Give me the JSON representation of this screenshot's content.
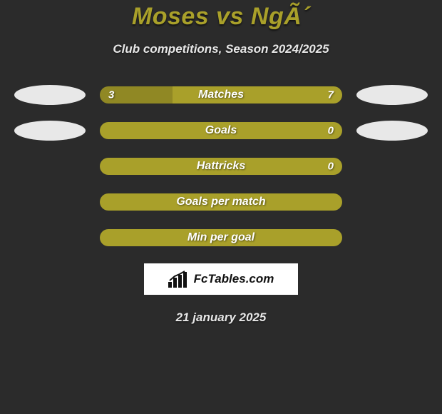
{
  "title": "Moses vs NgÃ´",
  "subtitle": "Club competitions, Season 2024/2025",
  "date": "21 january 2025",
  "logo_text": "FcTables.com",
  "colors": {
    "accent": "#a9a02a",
    "bg": "#2b2b2b",
    "avatar": "#e8e8e8",
    "bar_fill_a": "#a9a02a",
    "bar_fill_b": "#a9a02a",
    "white": "#ffffff"
  },
  "rows": [
    {
      "label": "Matches",
      "left": "3",
      "right": "7",
      "left_pct": 30,
      "show_avatars": true,
      "darker_left": true
    },
    {
      "label": "Goals",
      "left": "",
      "right": "0",
      "left_pct": 0,
      "show_avatars": true,
      "darker_left": false
    },
    {
      "label": "Hattricks",
      "left": "",
      "right": "0",
      "left_pct": 0,
      "show_avatars": false,
      "darker_left": false
    },
    {
      "label": "Goals per match",
      "left": "",
      "right": "",
      "left_pct": 0,
      "show_avatars": false,
      "darker_left": false
    },
    {
      "label": "Min per goal",
      "left": "",
      "right": "",
      "left_pct": 0,
      "show_avatars": false,
      "darker_left": false
    }
  ]
}
